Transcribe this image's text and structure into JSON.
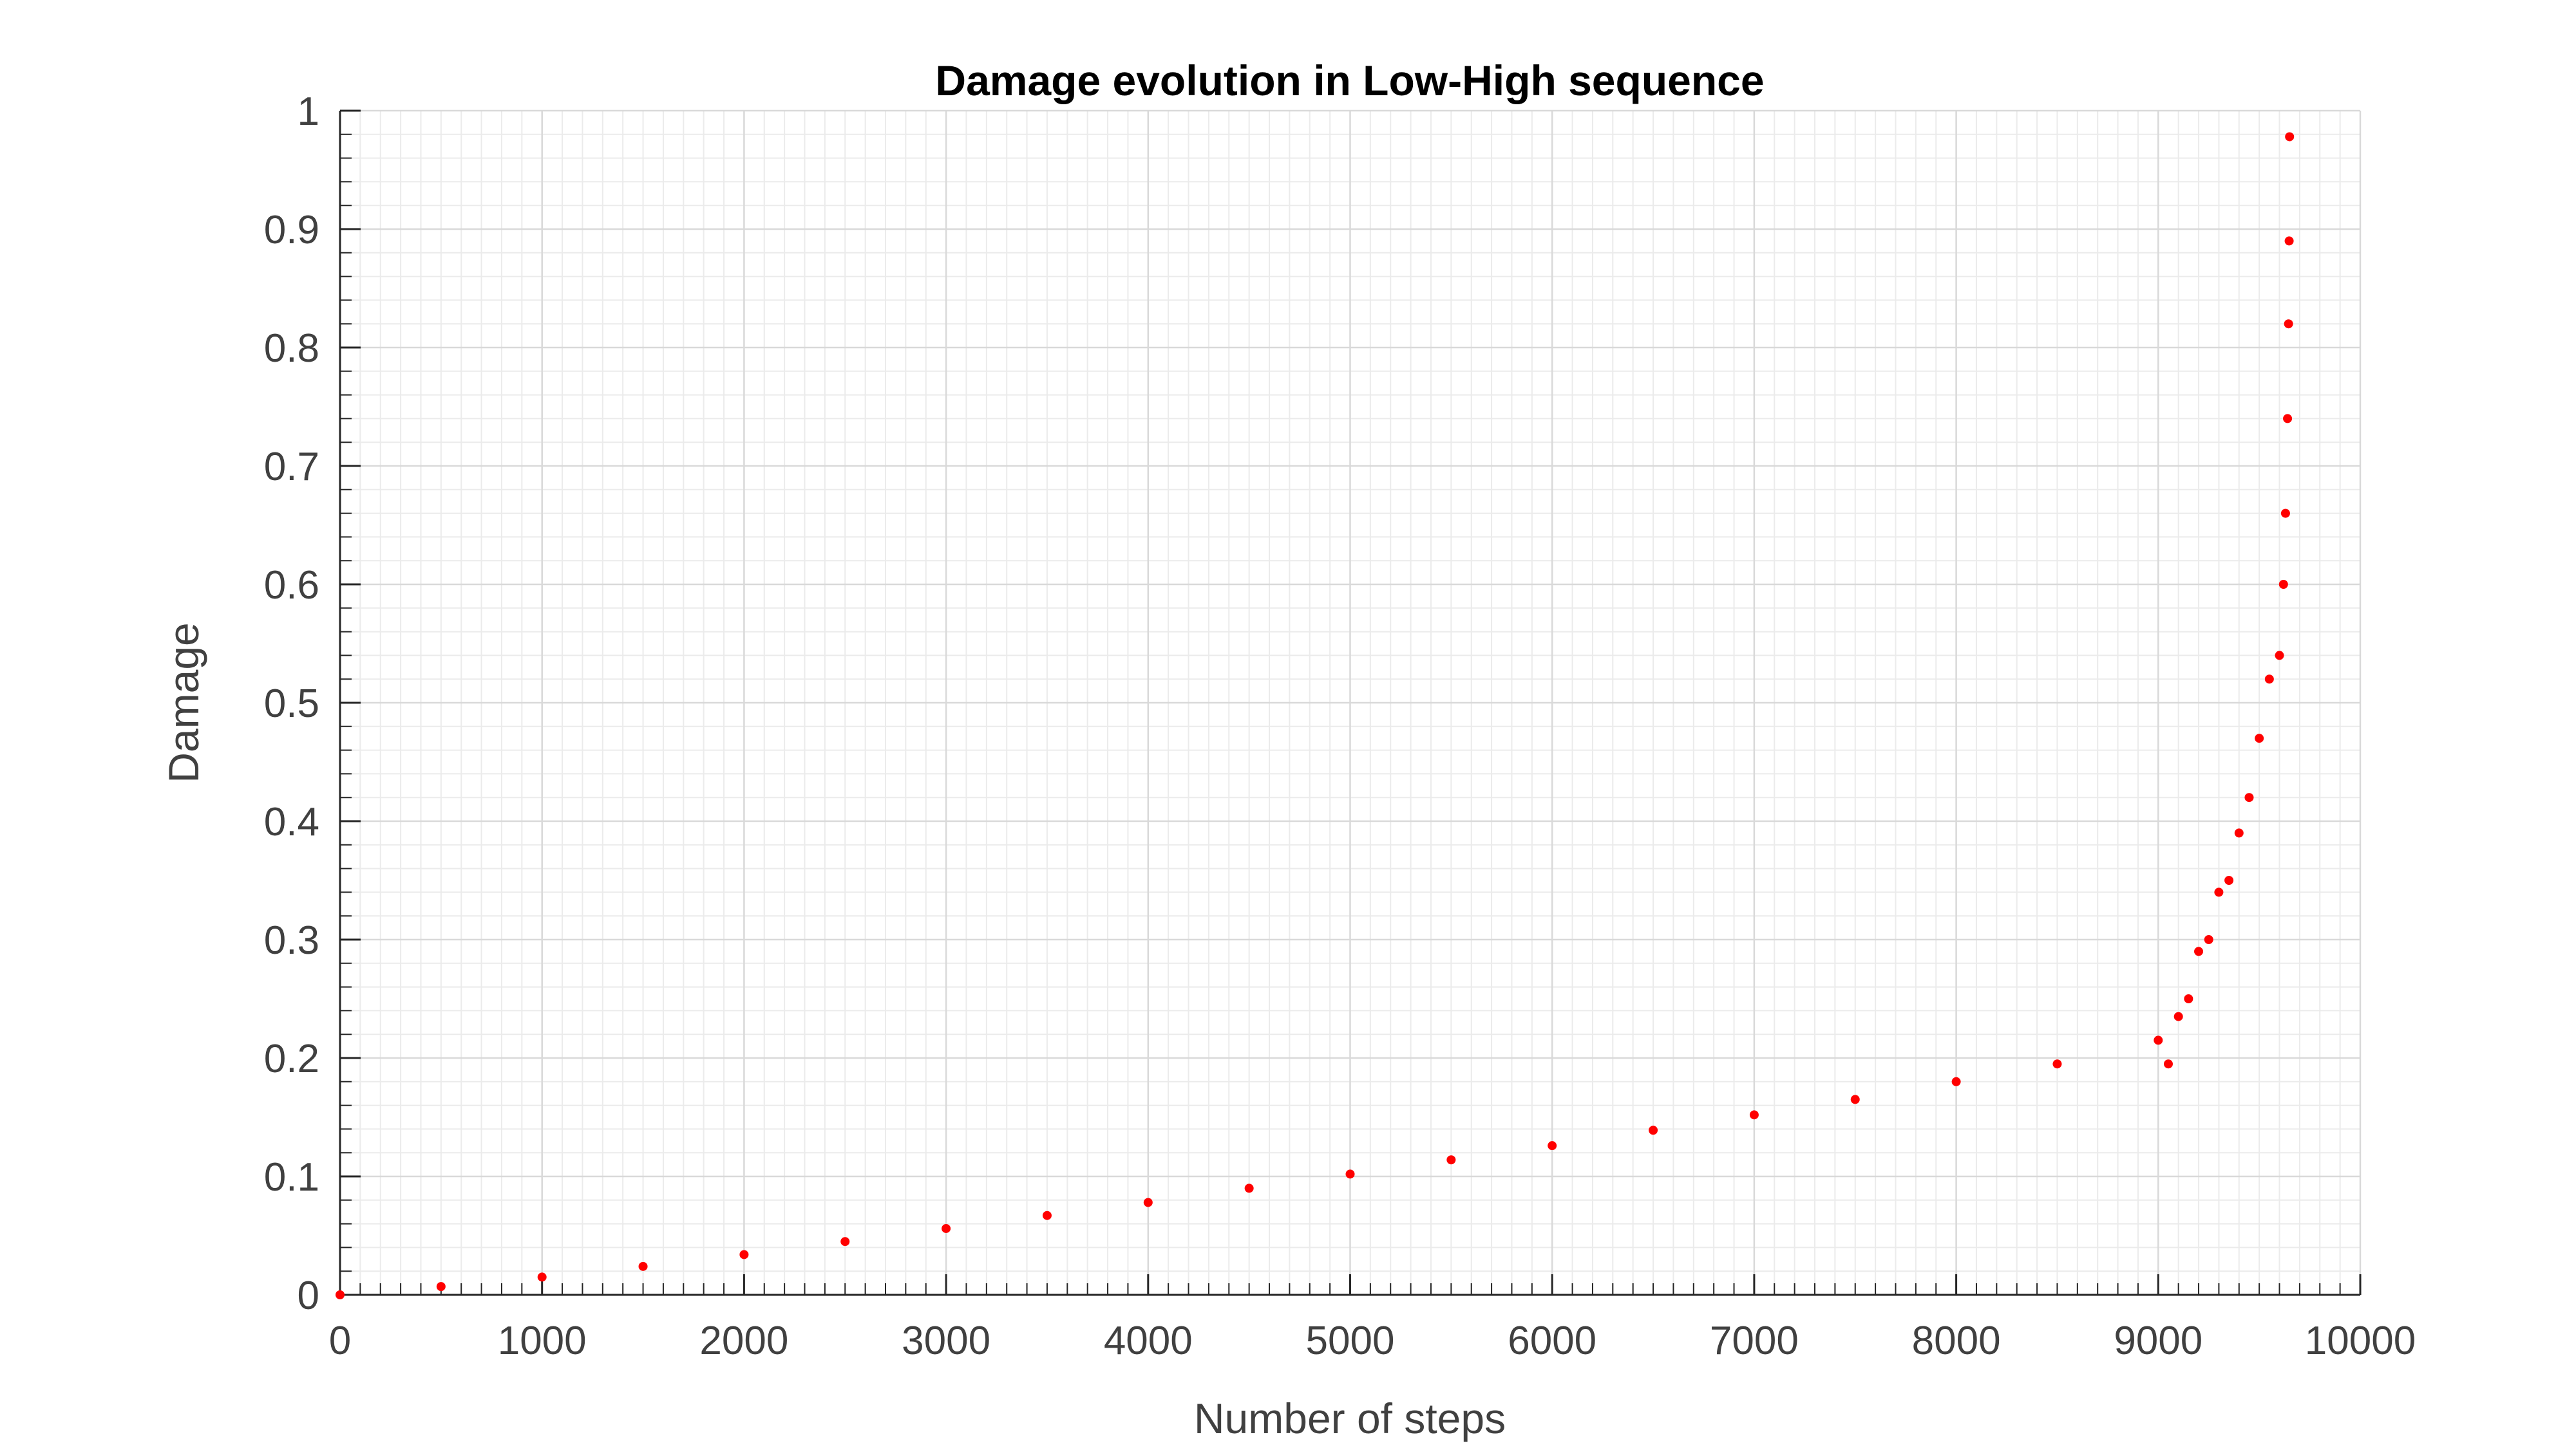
{
  "chart_data": {
    "type": "scatter",
    "title": "Damage evolution in Low-High sequence",
    "xlabel": "Number of steps",
    "ylabel": "Damage",
    "xlim": [
      0,
      10000
    ],
    "ylim": [
      0,
      1
    ],
    "xticks": [
      "0",
      "1000",
      "2000",
      "3000",
      "4000",
      "5000",
      "6000",
      "7000",
      "8000",
      "9000",
      "10000"
    ],
    "yticks": [
      "0",
      "0.1",
      "0.2",
      "0.3",
      "0.4",
      "0.5",
      "0.6",
      "0.7",
      "0.8",
      "0.9",
      "1"
    ],
    "grid": true,
    "minor_grid": true,
    "marker_color": "#ff0000",
    "series": [
      {
        "x": [
          0,
          500,
          1000,
          1500,
          2000,
          2500,
          3000,
          3500,
          4000,
          4500,
          5000,
          5500,
          6000,
          6500,
          7000,
          7500,
          8000,
          8500,
          9000,
          9050,
          9100,
          9150,
          9200,
          9250,
          9300,
          9350,
          9400,
          9450,
          9500,
          9550,
          9600,
          9620,
          9630,
          9640,
          9645,
          9648,
          9650
        ],
        "y": [
          0,
          0.007,
          0.015,
          0.024,
          0.034,
          0.045,
          0.056,
          0.067,
          0.078,
          0.09,
          0.102,
          0.114,
          0.126,
          0.139,
          0.152,
          0.165,
          0.18,
          0.195,
          0.215,
          0.195,
          0.235,
          0.25,
          0.29,
          0.3,
          0.34,
          0.35,
          0.39,
          0.42,
          0.47,
          0.52,
          0.54,
          0.6,
          0.66,
          0.74,
          0.82,
          0.89,
          0.978
        ]
      }
    ]
  }
}
